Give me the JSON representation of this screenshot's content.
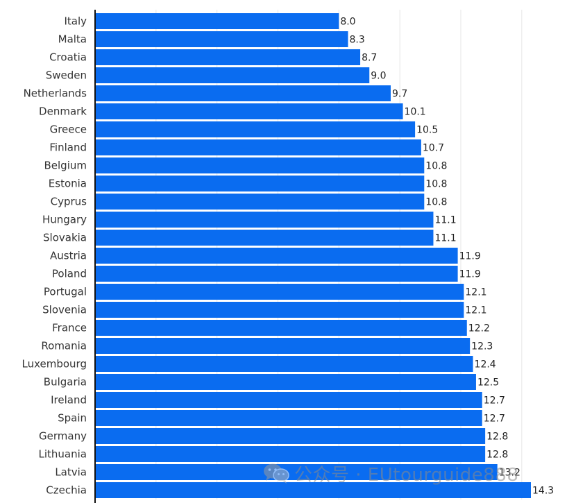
{
  "chart_data": {
    "type": "bar",
    "orientation": "horizontal",
    "categories": [
      "Italy",
      "Malta",
      "Croatia",
      "Sweden",
      "Netherlands",
      "Denmark",
      "Greece",
      "Finland",
      "Belgium",
      "Estonia",
      "Cyprus",
      "Hungary",
      "Slovakia",
      "Austria",
      "Poland",
      "Portugal",
      "Slovenia",
      "France",
      "Romania",
      "Luxembourg",
      "Bulgaria",
      "Ireland",
      "Spain",
      "Germany",
      "Lithuania",
      "Latvia",
      "Czechia"
    ],
    "values": [
      8.0,
      8.3,
      8.7,
      9.0,
      9.7,
      10.1,
      10.5,
      10.7,
      10.8,
      10.8,
      10.8,
      11.1,
      11.1,
      11.9,
      11.9,
      12.1,
      12.1,
      12.2,
      12.3,
      12.4,
      12.5,
      12.7,
      12.7,
      12.8,
      12.8,
      13.2,
      14.3
    ],
    "value_labels": [
      "8.0",
      "8.3",
      "8.7",
      "9.0",
      "9.7",
      "10.1",
      "10.5",
      "10.7",
      "10.8",
      "10.8",
      "10.8",
      "11.1",
      "11.1",
      "11.9",
      "11.9",
      "12.1",
      "12.1",
      "12.2",
      "12.3",
      "12.4",
      "12.5",
      "12.7",
      "12.7",
      "12.8",
      "12.8",
      "13.2",
      "14.3"
    ],
    "xlim": [
      0,
      14.3
    ],
    "grid": true,
    "bar_color": "#0a6cf0",
    "title": "",
    "xlabel": "",
    "ylabel": ""
  },
  "watermark": {
    "text": "公众号 · EUtourguide888",
    "icon": "wechat-icon"
  }
}
